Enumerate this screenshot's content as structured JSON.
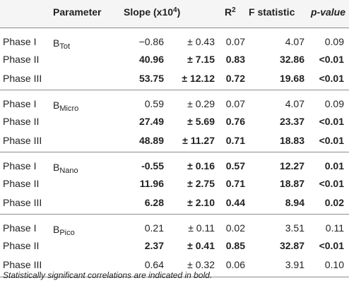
{
  "header": {
    "parameter": "Parameter",
    "slope_prefix": "Slope (x10",
    "slope_exp": "4",
    "slope_suffix": ")",
    "r2_base": "R",
    "r2_exp": "2",
    "f_statistic": "F statistic",
    "pvalue": "p-value"
  },
  "groups": [
    {
      "param_base": "B",
      "param_sub": "Tot",
      "rows": [
        {
          "phase": "Phase I",
          "slope": "−0.86",
          "err": "± 0.43",
          "r2": "0.07",
          "f": "4.07",
          "p": "0.09",
          "bold": false
        },
        {
          "phase": "Phase II",
          "slope": "40.96",
          "err": "± 7.15",
          "r2": "0.83",
          "f": "32.86",
          "p": "<0.01",
          "bold": true
        },
        {
          "phase": "Phase III",
          "slope": "53.75",
          "err": "± 12.12",
          "r2": "0.72",
          "f": "19.68",
          "p": "<0.01",
          "bold": true
        }
      ]
    },
    {
      "param_base": "B",
      "param_sub": "Micro",
      "rows": [
        {
          "phase": "Phase I",
          "slope": "0.59",
          "err": "± 0.29",
          "r2": "0.07",
          "f": "4.07",
          "p": "0.09",
          "bold": false
        },
        {
          "phase": "Phase II",
          "slope": "27.49",
          "err": "± 5.69",
          "r2": "0.76",
          "f": "23.37",
          "p": "<0.01",
          "bold": true
        },
        {
          "phase": "Phase III",
          "slope": "48.89",
          "err": "± 11.27",
          "r2": "0.71",
          "f": "18.83",
          "p": "<0.01",
          "bold": true
        }
      ]
    },
    {
      "param_base": "B",
      "param_sub": "Nano",
      "rows": [
        {
          "phase": "Phase I",
          "slope": "-0.55",
          "err": "± 0.16",
          "r2": "0.57",
          "f": "12.27",
          "p": "0.01",
          "bold": true
        },
        {
          "phase": "Phase II",
          "slope": "11.96",
          "err": "± 2.75",
          "r2": "0.71",
          "f": "18.87",
          "p": "<0.01",
          "bold": true
        },
        {
          "phase": "Phase III",
          "slope": "6.28",
          "err": "± 2.10",
          "r2": "0.44",
          "f": "8.94",
          "p": "0.02",
          "bold": true
        }
      ]
    },
    {
      "param_base": "B",
      "param_sub": "Pico",
      "rows": [
        {
          "phase": "Phase I",
          "slope": "0.21",
          "err": "± 0.11",
          "r2": "0.02",
          "f": "3.51",
          "p": "0.11",
          "bold": false
        },
        {
          "phase": "Phase II",
          "slope": "2.37",
          "err": "± 0.41",
          "r2": "0.85",
          "f": "32.87",
          "p": "<0.01",
          "bold": true
        },
        {
          "phase": "Phase III",
          "slope": "0.64",
          "err": "± 0.32",
          "r2": "0.06",
          "f": "3.91",
          "p": "0.10",
          "bold": false
        }
      ]
    }
  ],
  "footnote": "Statistically significant correlations are indicated in bold."
}
